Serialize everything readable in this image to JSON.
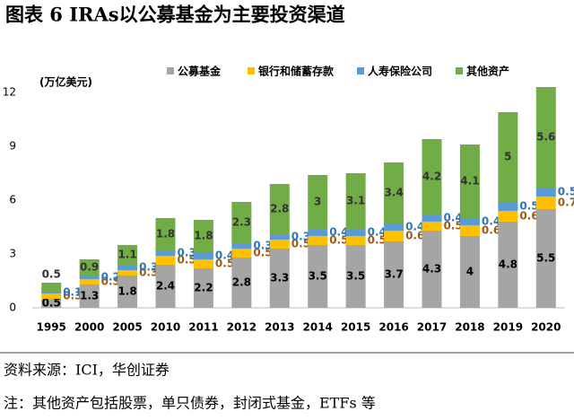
{
  "chart_data": {
    "type": "stacked_bar",
    "title": "图表 6 IRAs以公募基金为主要投资渠道",
    "y_label": "(万亿美元)",
    "categories": [
      "1995",
      "2000",
      "2005",
      "2010",
      "2011",
      "2012",
      "2013",
      "2014",
      "2015",
      "2016",
      "2017",
      "2018",
      "2019",
      "2020"
    ],
    "series": [
      {
        "name": "公募基金",
        "color": "#a5a5a5",
        "label_color": "#000000",
        "values": [
          0.5,
          1.3,
          1.8,
          2.4,
          2.2,
          2.8,
          3.3,
          3.5,
          3.5,
          3.7,
          4.3,
          4.0,
          4.8,
          5.5
        ]
      },
      {
        "name": "银行和储蓄存款",
        "color": "#ffc000",
        "label_color": "#9c5a16",
        "values": [
          0.3,
          0.3,
          0.3,
          0.5,
          0.5,
          0.5,
          0.5,
          0.5,
          0.5,
          0.6,
          0.5,
          0.6,
          0.6,
          0.7
        ]
      },
      {
        "name": "人寿保险公司",
        "color": "#5b9bd5",
        "label_color": "#2e75b6",
        "values": [
          0.1,
          0.2,
          0.3,
          0.3,
          0.4,
          0.3,
          0.3,
          0.4,
          0.4,
          0.4,
          0.4,
          0.4,
          0.5,
          0.5
        ]
      },
      {
        "name": "其他资产",
        "color": "#70ad47",
        "label_color": "#333333",
        "values": [
          0.5,
          0.9,
          1.1,
          1.8,
          1.8,
          2.3,
          2.8,
          3.0,
          3.1,
          3.4,
          4.2,
          4.1,
          5.0,
          5.6
        ]
      }
    ],
    "ylim": [
      0,
      12.5
    ],
    "yticks": [
      0,
      3,
      6,
      9,
      12
    ],
    "grid": false,
    "source": "资料来源：ICI，华创证券",
    "note": "注：其他资产包括股票，单只债券，封闭式基金，ETFs 等"
  }
}
